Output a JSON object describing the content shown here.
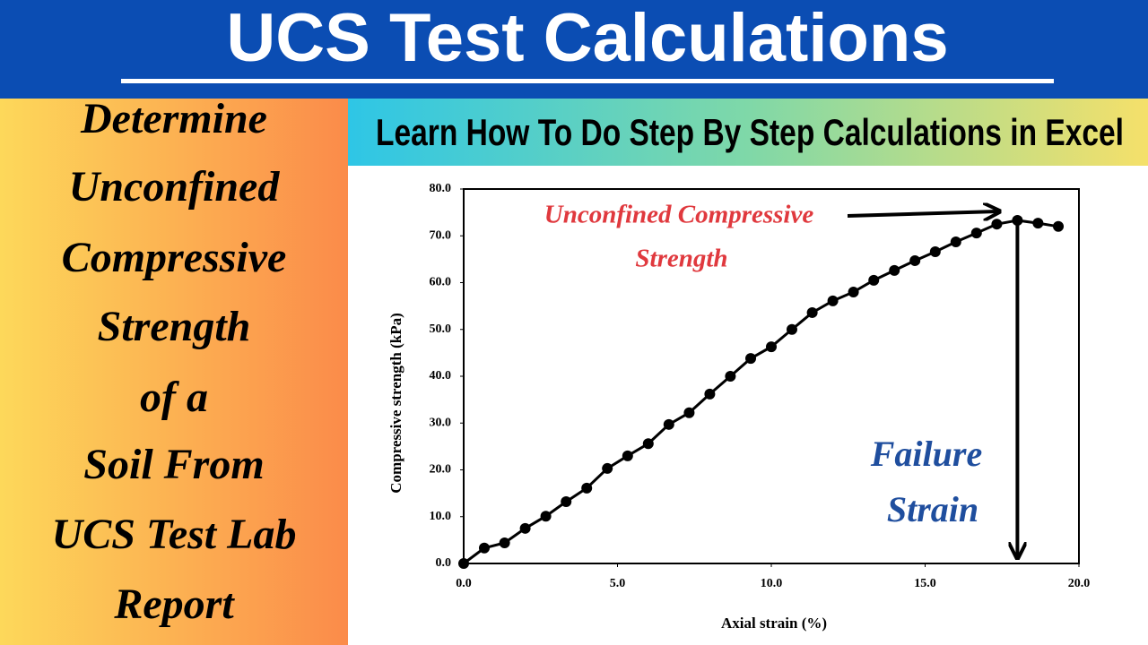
{
  "header": {
    "title": "UCS Test Calculations"
  },
  "left_panel": {
    "lines": [
      "Determine",
      "Unconfined",
      "Compressive",
      "Strength",
      "of a",
      "Soil From",
      "UCS Test Lab",
      "Report"
    ]
  },
  "banner": {
    "text": "Learn How To Do Step By Step Calculations in Excel"
  },
  "chart_data": {
    "type": "line",
    "x_label": "Axial strain (%)",
    "y_label": "Compressive strength (kPa)",
    "x": [
      0,
      0.67,
      1.33,
      2.0,
      2.67,
      3.33,
      4.0,
      4.67,
      5.33,
      6.0,
      6.67,
      7.33,
      8.0,
      8.67,
      9.33,
      10.0,
      10.67,
      11.33,
      12.0,
      12.67,
      13.33,
      14.0,
      14.67,
      15.33,
      16.0,
      16.67,
      17.33,
      18.0,
      18.67,
      19.33
    ],
    "values": [
      0,
      3.3,
      4.4,
      7.5,
      10.1,
      13.2,
      16.1,
      20.3,
      23.0,
      25.6,
      29.7,
      32.2,
      36.2,
      40.0,
      43.8,
      46.3,
      50.0,
      53.6,
      56.1,
      58.0,
      60.5,
      62.6,
      64.7,
      66.6,
      68.7,
      70.6,
      72.5,
      73.3,
      72.7,
      72.0
    ],
    "color": "#000000",
    "xlim": [
      0,
      20
    ],
    "ylim": [
      0,
      80
    ],
    "xticks": [
      {
        "value": 0,
        "label": "0.0"
      },
      {
        "value": 5,
        "label": "5.0"
      },
      {
        "value": 10,
        "label": "10.0"
      },
      {
        "value": 15,
        "label": "15.0"
      },
      {
        "value": 20,
        "label": "20.0"
      }
    ],
    "yticks": [
      {
        "value": 0,
        "label": "0.0"
      },
      {
        "value": 10,
        "label": "10.0"
      },
      {
        "value": 20,
        "label": "20.0"
      },
      {
        "value": 30,
        "label": "30.0"
      },
      {
        "value": 40,
        "label": "40.0"
      },
      {
        "value": 50,
        "label": "50.0"
      },
      {
        "value": 60,
        "label": "60.0"
      },
      {
        "value": 70,
        "label": "70.0"
      },
      {
        "value": 80,
        "label": "80.0"
      }
    ],
    "annotations": [
      {
        "lines": [
          "Unconfined Compressive",
          "Strength"
        ],
        "color": "#e0393e"
      },
      {
        "lines": [
          "Failure",
          "Strain"
        ],
        "color": "#1f4e9e"
      }
    ]
  }
}
